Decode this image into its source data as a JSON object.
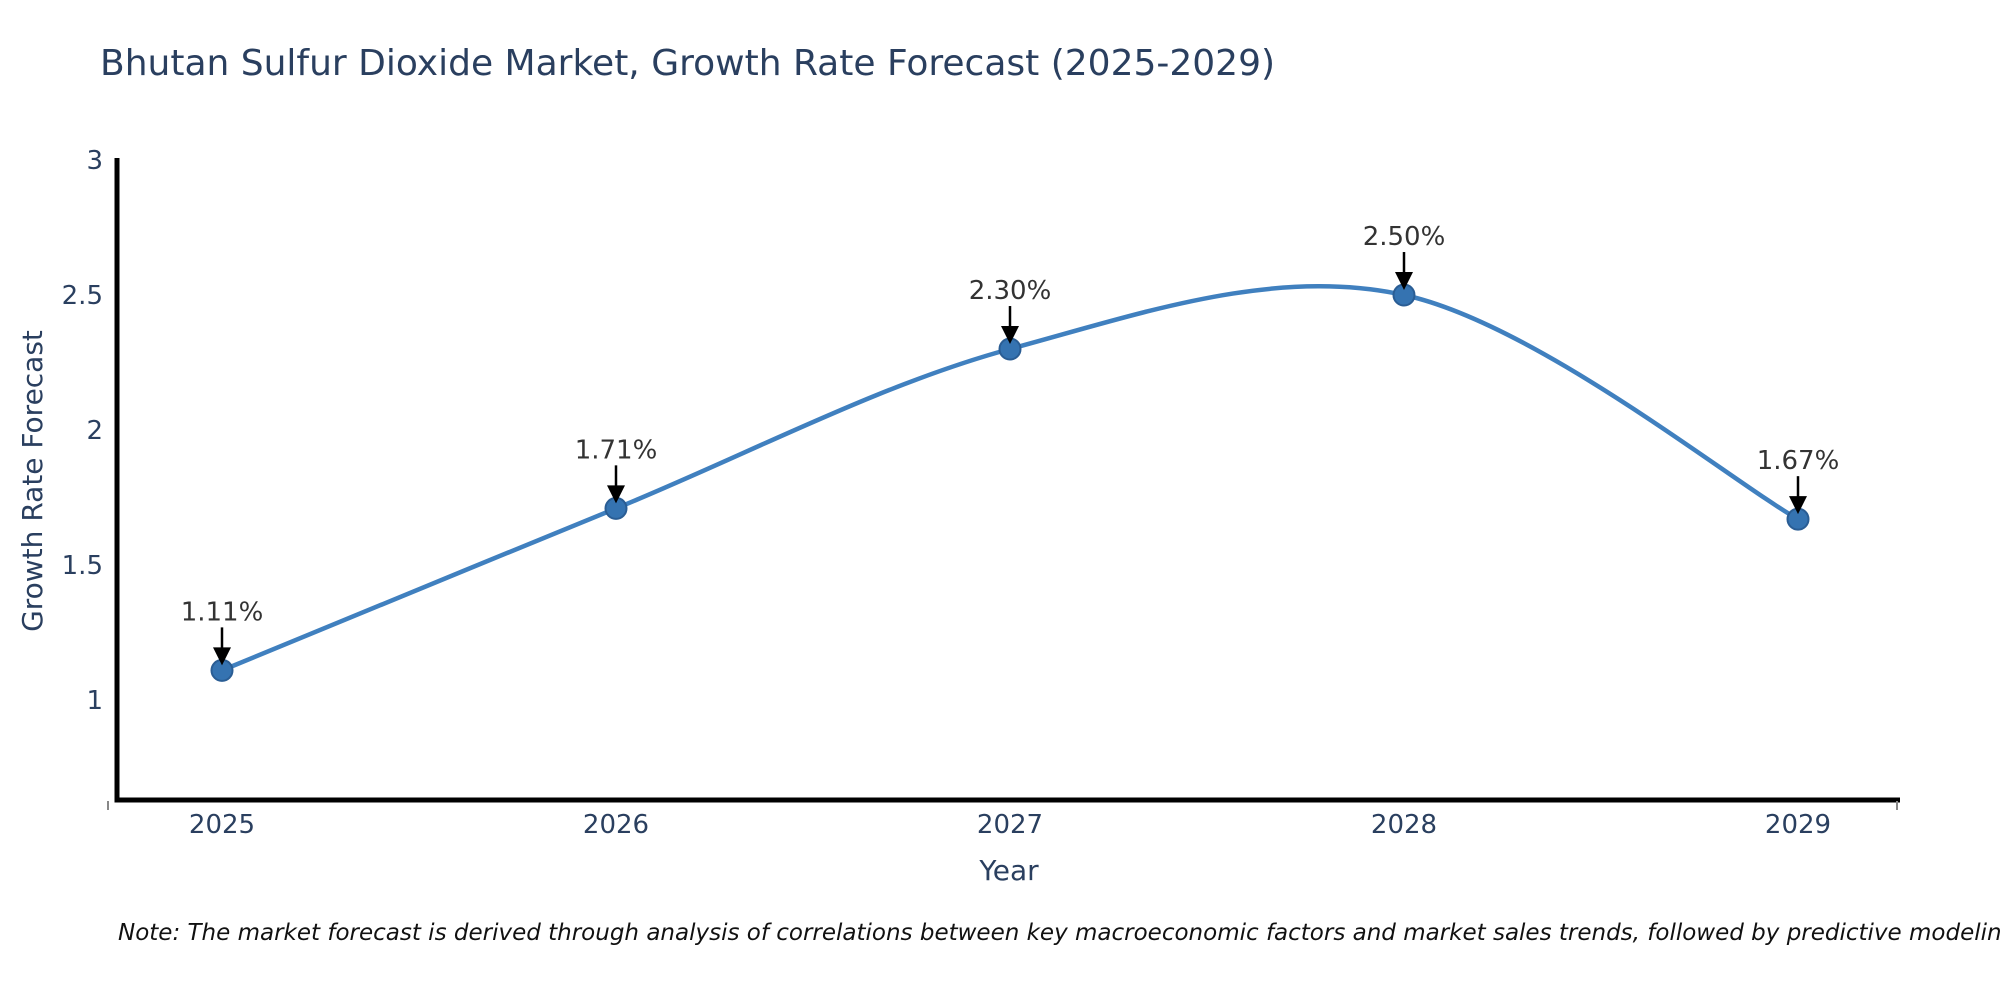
{
  "chart_data": {
    "type": "line",
    "title": "Bhutan Sulfur Dioxide Market, Growth Rate Forecast (2025-2029)",
    "xlabel": "Year",
    "ylabel": "Growth Rate Forecast",
    "line_shape": "spline",
    "grid": false,
    "legend": "none",
    "categories": [
      2025,
      2026,
      2027,
      2028,
      2029
    ],
    "x_tick_labels": [
      "2025",
      "2026",
      "2027",
      "2028",
      "2029"
    ],
    "values": [
      1.11,
      1.71,
      2.3,
      2.5,
      1.67
    ],
    "point_labels": [
      "1.11%",
      "1.71%",
      "2.30%",
      "2.50%",
      "1.67%"
    ],
    "y_ticks": [
      1,
      1.5,
      2,
      2.5,
      3
    ],
    "y_tick_labels": [
      "1",
      "1.5",
      "2",
      "2.5",
      "3"
    ],
    "ylim": [
      0.63,
      3.0
    ],
    "colors": {
      "line": "#4080bf",
      "marker_fill": "#3573b1",
      "marker_edge": "#2a5d94",
      "axis": "#000000",
      "text_dark": "#2a3f5f",
      "annotation_text": "#333333",
      "arrow": "#000000"
    }
  },
  "note": "Note: The market forecast is derived through analysis of correlations between key macroeconomic factors and market sales trends, followed by predictive modeling to project future sales"
}
